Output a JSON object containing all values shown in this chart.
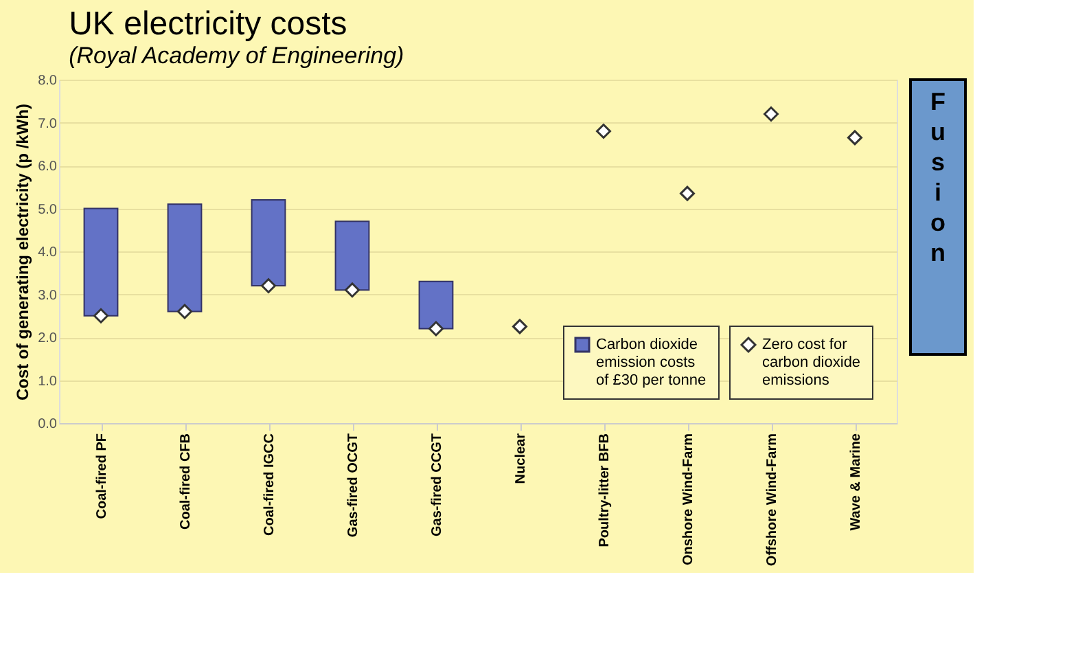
{
  "chart_data": {
    "type": "bar",
    "title": "UK electricity costs",
    "subtitle": "(Royal Academy of Engineering)",
    "ylabel": "Cost of generating electricity (p /kWh)",
    "categories": [
      "Coal-fired PF",
      "Coal-fired CFB",
      "Coal-fired IGCC",
      "Gas-fired OCGT",
      "Gas-fired CCGT",
      "Nuclear",
      "Poultry-litter BFB",
      "Onshore Wind-Farm",
      "Offshore Wind-Farm",
      "Wave & Marine"
    ],
    "series": [
      {
        "name": "Carbon dioxide emission costs of £30 per tonne",
        "color": "#6372c6",
        "base": [
          2.5,
          2.6,
          3.2,
          3.1,
          2.2,
          null,
          null,
          null,
          null,
          null
        ],
        "values": [
          2.5,
          2.5,
          2.0,
          1.6,
          1.1,
          null,
          null,
          null,
          null,
          null
        ]
      },
      {
        "type": "scatter",
        "name": "Zero cost for carbon dioxide emissions",
        "color": "#ffffff",
        "marker": "diamond",
        "values": [
          2.5,
          2.6,
          3.2,
          3.1,
          2.2,
          2.25,
          6.8,
          5.35,
          7.2,
          6.65
        ]
      }
    ],
    "ylim": [
      0,
      8
    ],
    "yticks": [
      {
        "value": 0,
        "label": "0.0"
      },
      {
        "value": 1,
        "label": "1.0"
      },
      {
        "value": 2,
        "label": "2.0"
      },
      {
        "value": 3,
        "label": "3.0"
      },
      {
        "value": 4,
        "label": "4.0"
      },
      {
        "value": 5,
        "label": "5.0"
      },
      {
        "value": 6,
        "label": "6.0"
      },
      {
        "value": 7,
        "label": "7.0"
      },
      {
        "value": 8,
        "label": "8.0"
      }
    ],
    "grid": "y",
    "legend": "bottom right",
    "annotations": [
      "Fusion"
    ]
  }
}
